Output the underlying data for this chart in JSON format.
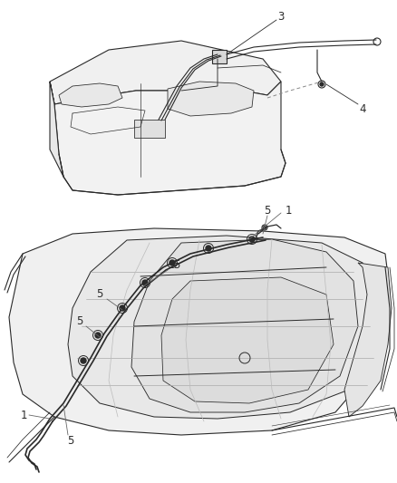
{
  "background_color": "#ffffff",
  "line_color": "#2a2a2a",
  "label_color": "#2a2a2a",
  "label_fontsize": 8.5,
  "top_section": {
    "tank_color": "#f2f2f2",
    "tank_detail_color": "#e0e0e0"
  },
  "bottom_section": {
    "chassis_color": "#f0f0f0",
    "chassis_detail_color": "#e4e4e4"
  }
}
